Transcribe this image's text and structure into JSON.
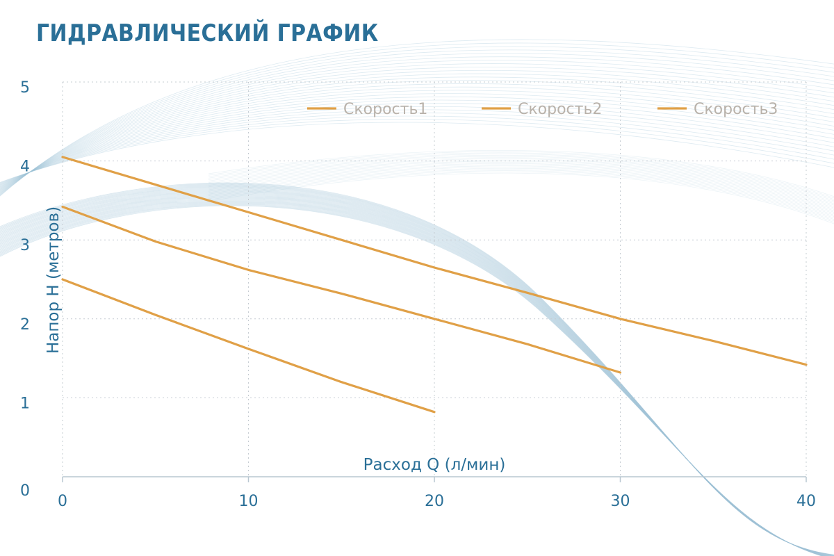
{
  "page": {
    "title": "ГИДРАВЛИЧЕСКИЙ ГРАФИК"
  },
  "colors": {
    "title": "#2a6f97",
    "axis_text": "#2a6f97",
    "series_line": "#e0a047",
    "legend_text": "#b9b2aa",
    "grid": "#c6ccd2",
    "background_swirl": "#9fc3d8"
  },
  "chart_data": {
    "type": "line",
    "title": "ГИДРАВЛИЧЕСКИЙ ГРАФИК",
    "xlabel": "Расход Q (л/мин)",
    "ylabel": "Напор H (метров)",
    "xlim": [
      0,
      40
    ],
    "ylim": [
      0,
      5
    ],
    "x_ticks": [
      "0",
      "10",
      "20",
      "30",
      "40"
    ],
    "y_ticks": [
      "0",
      "1",
      "2",
      "3",
      "4",
      "5"
    ],
    "grid": "dotted",
    "legend_position": "top-right",
    "series": [
      {
        "name": "Скорость1",
        "x": [
          0,
          5,
          10,
          15,
          20,
          25,
          30,
          35,
          40
        ],
        "y": [
          4.05,
          3.7,
          3.35,
          3.0,
          2.65,
          2.33,
          2.0,
          1.72,
          1.42
        ]
      },
      {
        "name": "Скорость2",
        "x": [
          0,
          5,
          10,
          15,
          20,
          25,
          30
        ],
        "y": [
          3.42,
          2.98,
          2.62,
          2.32,
          2.0,
          1.68,
          1.32
        ]
      },
      {
        "name": "Скорость3",
        "x": [
          0,
          5,
          10,
          15,
          20
        ],
        "y": [
          2.5,
          2.05,
          1.62,
          1.2,
          0.82
        ]
      }
    ]
  }
}
